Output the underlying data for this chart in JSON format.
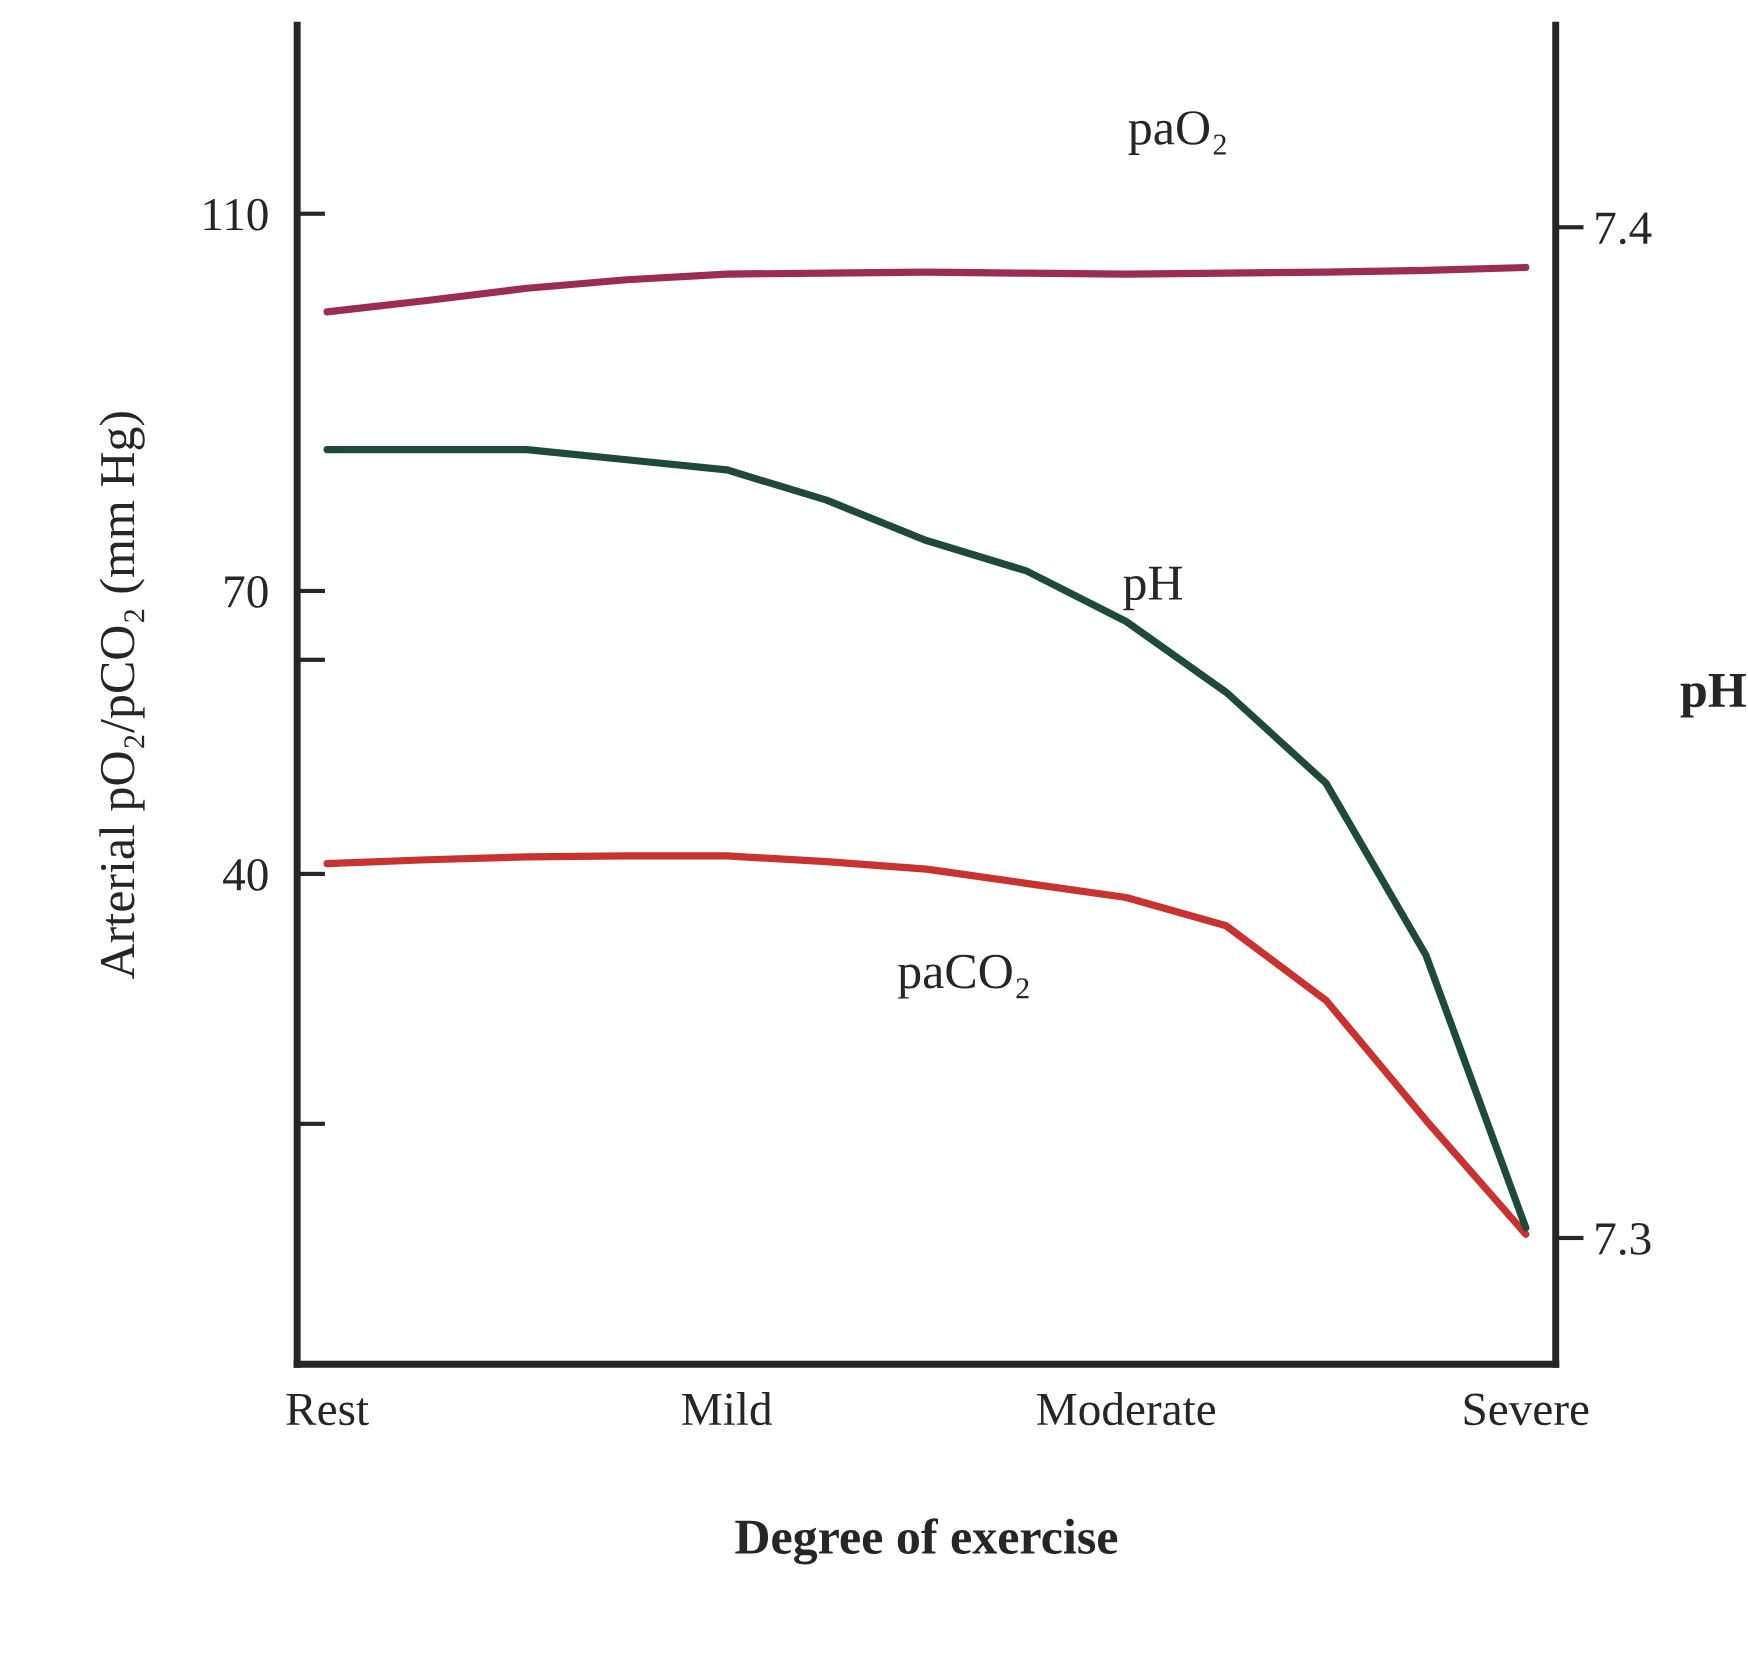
{
  "chart_data": {
    "type": "line",
    "xlabel": "Degree of exercise",
    "ylabel": "Arterial pO₂/pCO₂ (mm Hg)",
    "y2label": "pH",
    "categories": [
      "Rest",
      null,
      null,
      null,
      "Mild",
      null,
      null,
      null,
      "Moderate",
      null,
      null,
      null,
      "Severe"
    ],
    "ylim": [
      -12,
      130
    ],
    "yticks": [
      {
        "value": 13.5,
        "label": null
      },
      40,
      {
        "value": 62.7,
        "label": null
      },
      70,
      110
    ],
    "y2lim": [
      7.2875,
      7.42
    ],
    "y2ticks": [
      7.3,
      7.4
    ],
    "grid": false,
    "legend": false,
    "series": [
      {
        "color": "#9b2d55",
        "axis": "y",
        "values": [
          99.6,
          100.8,
          102.1,
          103,
          103.6,
          103.7,
          103.8,
          103.7,
          103.6,
          103.7,
          103.8,
          104,
          104.3
        ]
      },
      {
        "color": "#1f4a3a",
        "axis": "y2",
        "values": [
          7.378,
          7.378,
          7.378,
          7.377,
          7.376,
          7.373,
          7.369,
          7.366,
          7.361,
          7.354,
          7.345,
          7.328,
          7.301
        ]
      },
      {
        "color": "#c8322f",
        "axis": "y",
        "values": [
          41.1,
          41.5,
          41.8,
          41.9,
          41.9,
          41.3,
          40.5,
          39,
          37.5,
          34.5,
          26.6,
          13.9,
          1.8
        ]
      }
    ],
    "annotations": [
      "paO₂",
      "pH",
      "paCO₂"
    ]
  }
}
